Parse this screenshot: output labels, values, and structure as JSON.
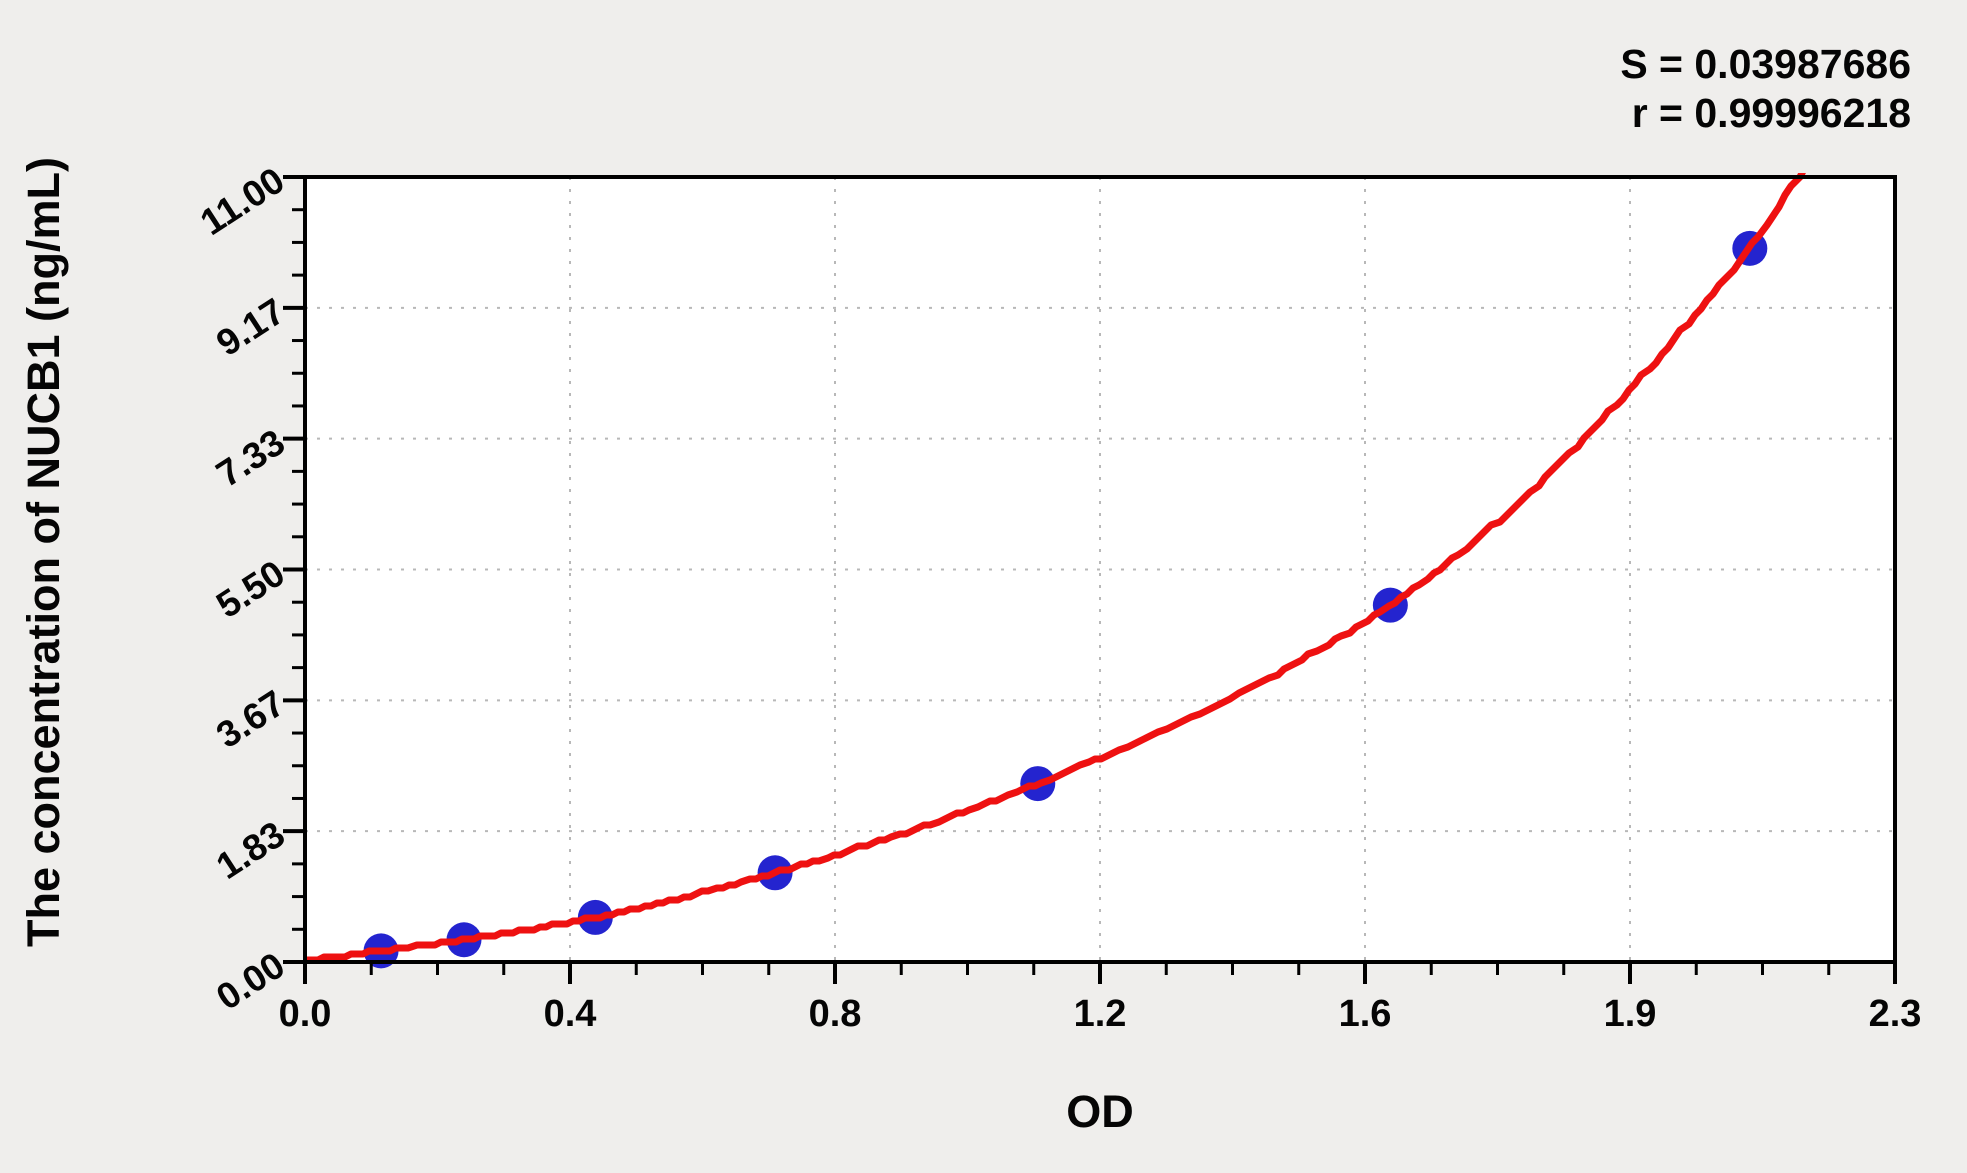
{
  "figure": {
    "background": "#efeeec"
  },
  "stats": {
    "s_line": "S = 0.03987686",
    "r_line": "r = 0.99996218"
  },
  "axes": {
    "x": {
      "title": "OD",
      "min": 0,
      "max": 2.3,
      "tick_labels": [
        "0.0",
        "0.4",
        "0.8",
        "1.2",
        "1.6",
        "1.9",
        "2.3"
      ],
      "minor_divisions": 4
    },
    "y": {
      "title": "The concentration of NUCB1 (ng/mL)",
      "min": 0,
      "max": 11,
      "tick_labels": [
        "0.00",
        "1.83",
        "3.67",
        "5.50",
        "7.33",
        "9.17",
        "11.00"
      ],
      "minor_divisions": 4
    }
  },
  "chart_data": {
    "type": "scatter",
    "xlabel": "OD",
    "ylabel": "The concentration of NUCB1 (ng/mL)",
    "xlim": [
      0,
      2.3
    ],
    "ylim": [
      0,
      11
    ],
    "x_tick_labels": [
      "0.0",
      "0.4",
      "0.8",
      "1.2",
      "1.6",
      "1.9",
      "2.3"
    ],
    "y_tick_labels": [
      "0.00",
      "1.83",
      "3.67",
      "5.50",
      "7.33",
      "9.17",
      "11.00"
    ],
    "grid": "dashed gridlines at every major tick",
    "annotations": [
      "S = 0.03987686",
      "r = 0.99996218"
    ],
    "series": [
      {
        "name": "standard-points",
        "type": "scatter",
        "color": "#2424cf",
        "marker_radius_px": 17.5,
        "x": [
          0.11,
          0.23,
          0.42,
          0.68,
          1.06,
          1.57,
          2.09
        ],
        "y": [
          0.156,
          0.312,
          0.625,
          1.25,
          2.5,
          5.0,
          10.0
        ]
      },
      {
        "name": "fit-curve",
        "type": "line",
        "color": "#ee1111",
        "stroke_px": 7,
        "anchors_x": [
          0,
          0.11,
          0.23,
          0.42,
          0.68,
          1.06,
          1.57,
          2.09,
          2.17
        ],
        "anchors_y": [
          0.02,
          0.156,
          0.312,
          0.625,
          1.25,
          2.5,
          5.0,
          10.0,
          11.15
        ]
      }
    ],
    "colors": {
      "curve": "#ee1111",
      "points": "#2424cf",
      "grid": "#b8b8b8",
      "axis": "#000000",
      "plot_bg": "#ffffff",
      "fig_bg": "#efeeec"
    }
  }
}
